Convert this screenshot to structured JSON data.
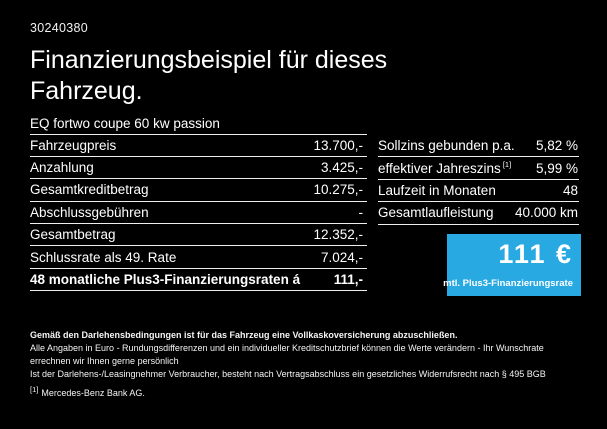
{
  "doc": {
    "ref_number": "30240380",
    "title": "Finanzierungsbeispiel für dieses Fahrzeug.",
    "vehicle": "EQ fortwo coupe 60 kw passion"
  },
  "left_table": {
    "rows": [
      {
        "label": "Fahrzeugpreis",
        "value": "13.700,-"
      },
      {
        "label": "Anzahlung",
        "value": "3.425,-"
      },
      {
        "label": "Gesamtkreditbetrag",
        "value": "10.275,-"
      },
      {
        "label": "Abschlussgebühren",
        "value": "-"
      },
      {
        "label": "Gesamtbetrag",
        "value": "12.352,-"
      },
      {
        "label": "Schlussrate als 49. Rate",
        "value": "7.024,-"
      },
      {
        "label": "48 monatliche Plus3-Finanzierungsraten á",
        "value": "111,-"
      }
    ]
  },
  "right_table": {
    "rows": [
      {
        "label": "Sollzins gebunden p.a.",
        "value": "5,82 %"
      },
      {
        "label": "effektiver Jahreszins",
        "sup": "[1]",
        "value": "5,99 %"
      },
      {
        "label": "Laufzeit in Monaten",
        "value": "48"
      },
      {
        "label": "Gesamtlaufleistung",
        "value": "40.000 km"
      }
    ]
  },
  "rate_box": {
    "amount": "111 €",
    "caption": "mtl. Plus3-Finanzierungsrate",
    "background_color": "#29A9E2"
  },
  "footnotes": {
    "line1": "Gemäß den Darlehensbedingungen ist für das Fahrzeug eine Vollkaskoversicherung abzuschließen.",
    "line2": "Alle Angaben in Euro - Rundungsdifferenzen und ein individueller Kreditschutzbrief können die Werte verändern - Ihr Wunschrate errechnen wir Ihnen gerne persönlich",
    "line3": "Ist der Darlehens-/Leasingnehmer Verbraucher, besteht nach Vertragsabschluss ein gesetzliches Widerrufsrecht nach § 495 BGB",
    "line4_sup": "[1]",
    "line4": "Mercedes-Benz Bank AG."
  }
}
